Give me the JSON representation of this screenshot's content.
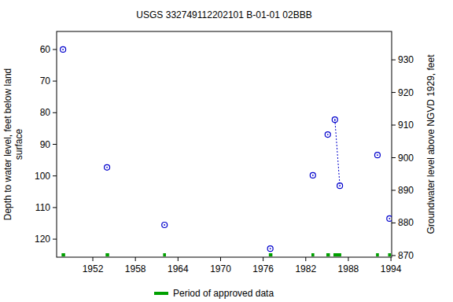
{
  "chart_data": {
    "type": "scatter",
    "title": "USGS 332749112202101 B-01-01 02BBB",
    "y_label": [
      "Depth to water level, feet below land",
      "surface"
    ],
    "y2_label": "Groundwater level above NGVD 1929, feet",
    "xlim": [
      1946.9,
      1994.1
    ],
    "xticks": [
      1952,
      1958,
      1964,
      1970,
      1976,
      1982,
      1988,
      1994
    ],
    "ylim": [
      125.7,
      54.3
    ],
    "yticks": [
      60,
      70,
      80,
      90,
      100,
      110,
      120
    ],
    "y2lim": [
      869.5,
      938.7
    ],
    "y2ticks": [
      870,
      880,
      890,
      900,
      910,
      920,
      930
    ],
    "grid": false,
    "legend": "bottom",
    "series": [
      {
        "type": "scatter",
        "marker": "circle",
        "color": "#0000cc",
        "x": [
          1947.8,
          1954.0,
          1962.1,
          1977.0,
          1983.0,
          1985.1,
          1986.1,
          1986.8,
          1992.1,
          1993.8
        ],
        "values": [
          60.0,
          97.3,
          115.5,
          123.0,
          99.8,
          86.9,
          82.2,
          103.1,
          93.4,
          113.5
        ]
      },
      {
        "type": "line",
        "line_style": "dotted",
        "color": "#0000cc",
        "x": [
          1986.1,
          1986.8
        ],
        "values": [
          82.2,
          103.1
        ]
      }
    ],
    "approved_periods": {
      "name": "Period of approved data",
      "color": "#00a000",
      "ranges": [
        [
          1947.6,
          1948.1
        ],
        [
          1953.8,
          1954.3
        ],
        [
          1961.9,
          1962.3
        ],
        [
          1976.8,
          1977.3
        ],
        [
          1982.8,
          1983.2
        ],
        [
          1984.9,
          1985.4
        ],
        [
          1985.9,
          1987.0
        ],
        [
          1991.9,
          1992.3
        ],
        [
          1993.6,
          1994.0
        ]
      ]
    }
  }
}
